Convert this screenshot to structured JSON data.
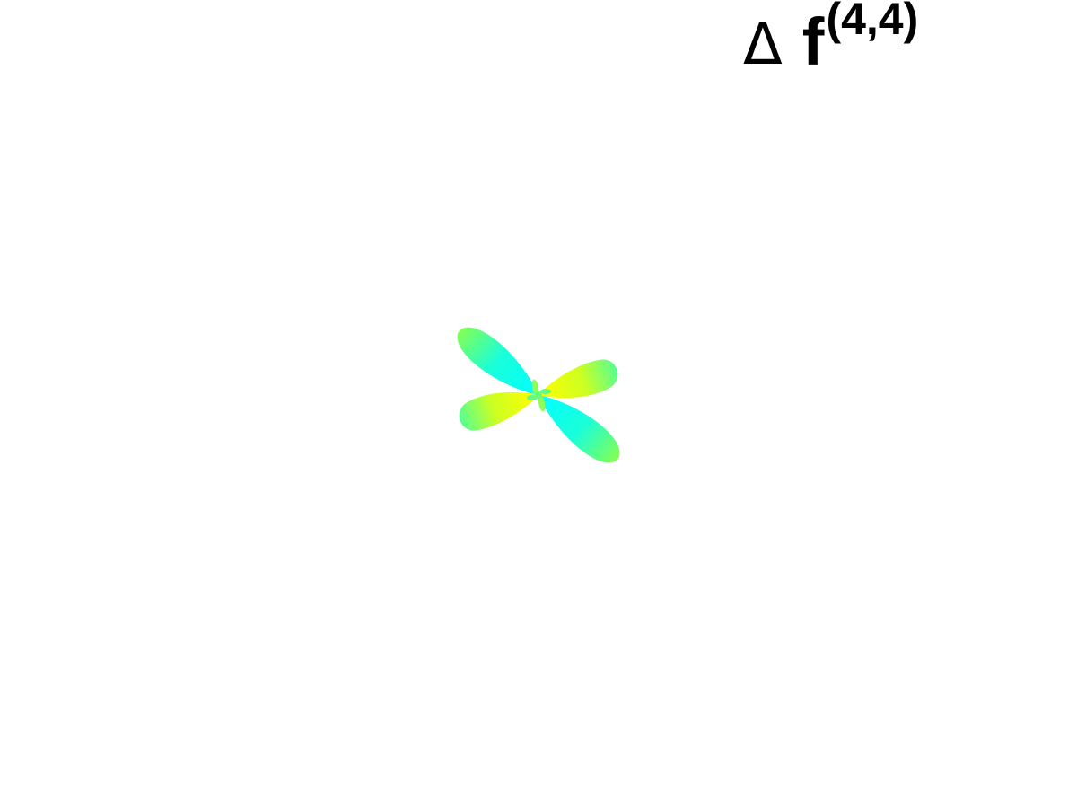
{
  "title": {
    "symbol": "Δ",
    "function": "f",
    "superscript": "(4,4)"
  },
  "surface": {
    "colors": {
      "cyan": "#00ffff",
      "mid": "#4dff9a",
      "yellow": "#ffff00"
    }
  }
}
